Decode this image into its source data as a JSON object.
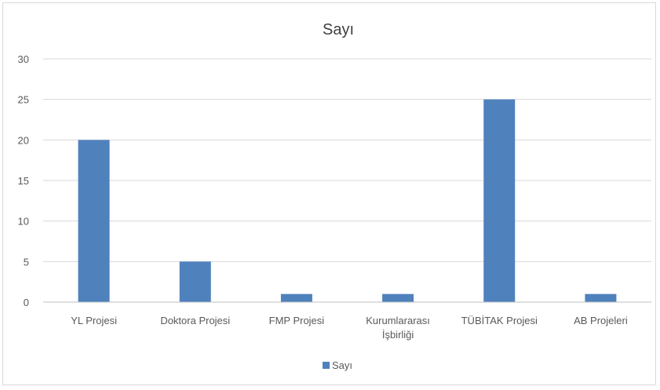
{
  "chart_data": {
    "type": "bar",
    "title": "Sayı",
    "categories": [
      "YL Projesi",
      "Doktora Projesi",
      "FMP Projesi",
      "Kurumlararası İşbirliği",
      "TÜBİTAK Projesi",
      "AB Projeleri"
    ],
    "category_lines": [
      [
        "YL Projesi"
      ],
      [
        "Doktora Projesi"
      ],
      [
        "FMP Projesi"
      ],
      [
        "Kurumlararası",
        "İşbirliği"
      ],
      [
        "TÜBİTAK Projesi"
      ],
      [
        "AB Projeleri"
      ]
    ],
    "series": [
      {
        "name": "Sayı",
        "values": [
          20,
          5,
          1,
          1,
          25,
          1
        ],
        "color": "#4f81bd"
      }
    ],
    "ylim": [
      0,
      30
    ],
    "yticks": [
      0,
      5,
      10,
      15,
      20,
      25,
      30
    ],
    "grid": true,
    "legend": "bottom",
    "gridColor": "#d9d9d9",
    "axisColor": "#bfbfbf"
  }
}
